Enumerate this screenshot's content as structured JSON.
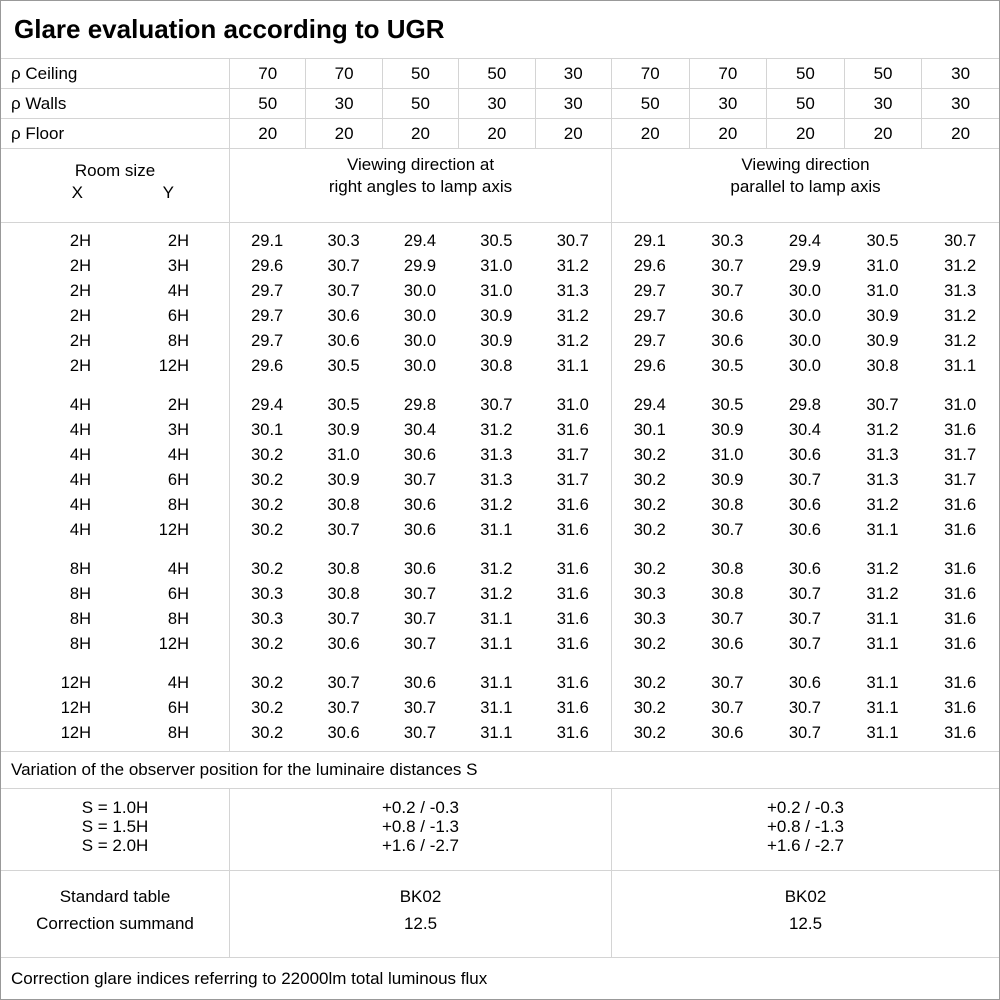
{
  "title": "Glare evaluation according to UGR",
  "reflectance_rows": [
    {
      "label": "ρ Ceiling",
      "values": [
        "70",
        "70",
        "50",
        "50",
        "30",
        "70",
        "70",
        "50",
        "50",
        "30"
      ]
    },
    {
      "label": "ρ Walls",
      "values": [
        "50",
        "30",
        "50",
        "30",
        "30",
        "50",
        "30",
        "50",
        "30",
        "30"
      ]
    },
    {
      "label": "ρ Floor",
      "values": [
        "20",
        "20",
        "20",
        "20",
        "20",
        "20",
        "20",
        "20",
        "20",
        "20"
      ]
    }
  ],
  "header": {
    "room_size_label": "Room size",
    "x_label": "X",
    "y_label": "Y",
    "viewing_groups": [
      {
        "lines": [
          "Viewing direction at",
          "right angles to lamp axis"
        ]
      },
      {
        "lines": [
          "Viewing direction",
          "parallel to lamp axis"
        ]
      }
    ]
  },
  "ugr_blocks": [
    {
      "rows": [
        {
          "x": "2H",
          "y": "2H",
          "values": [
            "29.1",
            "30.3",
            "29.4",
            "30.5",
            "30.7",
            "29.1",
            "30.3",
            "29.4",
            "30.5",
            "30.7"
          ]
        },
        {
          "x": "2H",
          "y": "3H",
          "values": [
            "29.6",
            "30.7",
            "29.9",
            "31.0",
            "31.2",
            "29.6",
            "30.7",
            "29.9",
            "31.0",
            "31.2"
          ]
        },
        {
          "x": "2H",
          "y": "4H",
          "values": [
            "29.7",
            "30.7",
            "30.0",
            "31.0",
            "31.3",
            "29.7",
            "30.7",
            "30.0",
            "31.0",
            "31.3"
          ]
        },
        {
          "x": "2H",
          "y": "6H",
          "values": [
            "29.7",
            "30.6",
            "30.0",
            "30.9",
            "31.2",
            "29.7",
            "30.6",
            "30.0",
            "30.9",
            "31.2"
          ]
        },
        {
          "x": "2H",
          "y": "8H",
          "values": [
            "29.7",
            "30.6",
            "30.0",
            "30.9",
            "31.2",
            "29.7",
            "30.6",
            "30.0",
            "30.9",
            "31.2"
          ]
        },
        {
          "x": "2H",
          "y": "12H",
          "values": [
            "29.6",
            "30.5",
            "30.0",
            "30.8",
            "31.1",
            "29.6",
            "30.5",
            "30.0",
            "30.8",
            "31.1"
          ]
        }
      ]
    },
    {
      "rows": [
        {
          "x": "4H",
          "y": "2H",
          "values": [
            "29.4",
            "30.5",
            "29.8",
            "30.7",
            "31.0",
            "29.4",
            "30.5",
            "29.8",
            "30.7",
            "31.0"
          ]
        },
        {
          "x": "4H",
          "y": "3H",
          "values": [
            "30.1",
            "30.9",
            "30.4",
            "31.2",
            "31.6",
            "30.1",
            "30.9",
            "30.4",
            "31.2",
            "31.6"
          ]
        },
        {
          "x": "4H",
          "y": "4H",
          "values": [
            "30.2",
            "31.0",
            "30.6",
            "31.3",
            "31.7",
            "30.2",
            "31.0",
            "30.6",
            "31.3",
            "31.7"
          ]
        },
        {
          "x": "4H",
          "y": "6H",
          "values": [
            "30.2",
            "30.9",
            "30.7",
            "31.3",
            "31.7",
            "30.2",
            "30.9",
            "30.7",
            "31.3",
            "31.7"
          ]
        },
        {
          "x": "4H",
          "y": "8H",
          "values": [
            "30.2",
            "30.8",
            "30.6",
            "31.2",
            "31.6",
            "30.2",
            "30.8",
            "30.6",
            "31.2",
            "31.6"
          ]
        },
        {
          "x": "4H",
          "y": "12H",
          "values": [
            "30.2",
            "30.7",
            "30.6",
            "31.1",
            "31.6",
            "30.2",
            "30.7",
            "30.6",
            "31.1",
            "31.6"
          ]
        }
      ]
    },
    {
      "rows": [
        {
          "x": "8H",
          "y": "4H",
          "values": [
            "30.2",
            "30.8",
            "30.6",
            "31.2",
            "31.6",
            "30.2",
            "30.8",
            "30.6",
            "31.2",
            "31.6"
          ]
        },
        {
          "x": "8H",
          "y": "6H",
          "values": [
            "30.3",
            "30.8",
            "30.7",
            "31.2",
            "31.6",
            "30.3",
            "30.8",
            "30.7",
            "31.2",
            "31.6"
          ]
        },
        {
          "x": "8H",
          "y": "8H",
          "values": [
            "30.3",
            "30.7",
            "30.7",
            "31.1",
            "31.6",
            "30.3",
            "30.7",
            "30.7",
            "31.1",
            "31.6"
          ]
        },
        {
          "x": "8H",
          "y": "12H",
          "values": [
            "30.2",
            "30.6",
            "30.7",
            "31.1",
            "31.6",
            "30.2",
            "30.6",
            "30.7",
            "31.1",
            "31.6"
          ]
        }
      ]
    },
    {
      "rows": [
        {
          "x": "12H",
          "y": "4H",
          "values": [
            "30.2",
            "30.7",
            "30.6",
            "31.1",
            "31.6",
            "30.2",
            "30.7",
            "30.6",
            "31.1",
            "31.6"
          ]
        },
        {
          "x": "12H",
          "y": "6H",
          "values": [
            "30.2",
            "30.7",
            "30.7",
            "31.1",
            "31.6",
            "30.2",
            "30.7",
            "30.7",
            "31.1",
            "31.6"
          ]
        },
        {
          "x": "12H",
          "y": "8H",
          "values": [
            "30.2",
            "30.6",
            "30.7",
            "31.1",
            "31.6",
            "30.2",
            "30.6",
            "30.7",
            "31.1",
            "31.6"
          ]
        }
      ]
    }
  ],
  "observer_variation": {
    "note": "Variation of the observer position for the luminaire distances S",
    "s_labels": [
      "S = 1.0H",
      "S = 1.5H",
      "S = 2.0H"
    ],
    "corrections": [
      "+0.2 / -0.3",
      "+0.8 / -1.3",
      "+1.6 / -2.7"
    ]
  },
  "standard": {
    "labels": [
      "Standard table",
      "Correction summand"
    ],
    "values": [
      "BK02",
      "12.5"
    ]
  },
  "footer_note": "Correction glare indices referring to 22000lm total luminous flux",
  "colors": {
    "background": "#ffffff",
    "text": "#000000",
    "grid_line": "#d4d4d4",
    "outer_border": "#999999"
  }
}
